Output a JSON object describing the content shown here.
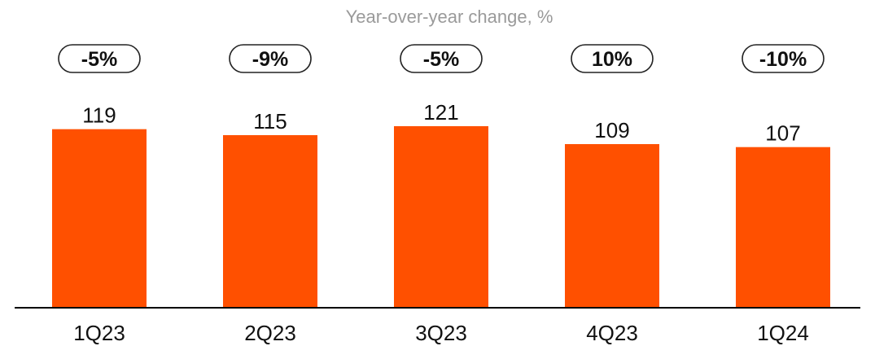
{
  "chart_data": {
    "type": "bar",
    "subtitle": "Year-over-year change, %",
    "categories": [
      "1Q23",
      "2Q23",
      "3Q23",
      "4Q23",
      "1Q24"
    ],
    "values": [
      119,
      115,
      121,
      109,
      107
    ],
    "yoy_change": [
      "-5%",
      "-9%",
      "-5%",
      "10%",
      "-10%"
    ],
    "ylim": [
      0,
      121
    ],
    "grid": false,
    "legend": "none",
    "colors": {
      "bar": "#ff5000",
      "axis": "#000000",
      "pill_border": "#222222"
    }
  }
}
